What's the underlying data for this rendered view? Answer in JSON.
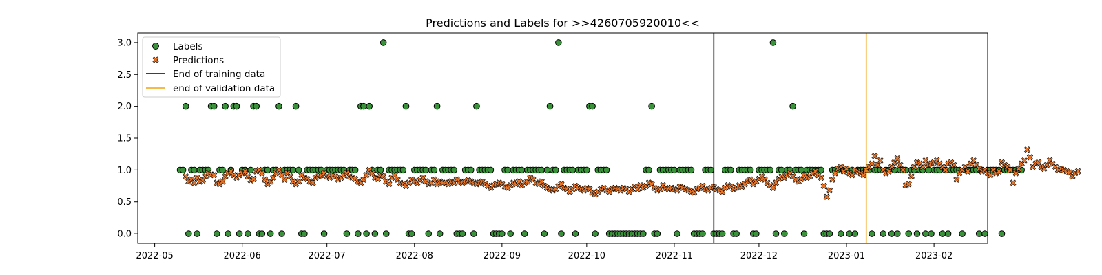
{
  "chart_data": {
    "type": "scatter",
    "title": "Predictions and Labels for >>4260705920010<<",
    "xlabel": "",
    "ylabel": "",
    "x_start": "2022-04-25",
    "x_end": "2023-02-20",
    "ylim": [
      -0.15,
      3.15
    ],
    "x_ticks": [
      "2022-05-01",
      "2022-06-01",
      "2022-07-01",
      "2022-08-01",
      "2022-09-01",
      "2022-10-01",
      "2022-11-01",
      "2022-12-01",
      "2023-01-01",
      "2023-02-01"
    ],
    "x_tick_labels": [
      "2022-05",
      "2022-06",
      "2022-07",
      "2022-08",
      "2022-09",
      "2022-10",
      "2022-11",
      "2022-12",
      "2023-01",
      "2023-02"
    ],
    "y_ticks": [
      0.0,
      0.5,
      1.0,
      1.5,
      2.0,
      2.5,
      3.0
    ],
    "y_tick_labels": [
      "0.0",
      "0.5",
      "1.0",
      "1.5",
      "2.0",
      "2.5",
      "3.0"
    ],
    "grid": false,
    "legend_position": "top-left",
    "legend": {
      "labels": "Labels",
      "predictions": "Predictions",
      "train_end": "End of training data",
      "val_end": "end of validation data"
    },
    "colors": {
      "labels": "#3a923a",
      "predictions": "#e8762a",
      "train_end": "#000000",
      "val_end": "#f2a30f"
    },
    "vlines": {
      "train_end": "2022-11-15",
      "val_end": "2023-01-08"
    },
    "labels_start_date": "2022-05-10",
    "labels_values": [
      1,
      1,
      2,
      0,
      1,
      1,
      0,
      1,
      1,
      1,
      1,
      2,
      2,
      0,
      1,
      1,
      2,
      0,
      1,
      2,
      2,
      0,
      1,
      1,
      0,
      1,
      2,
      2,
      0,
      0,
      1,
      1,
      0,
      1,
      1,
      2,
      0,
      1,
      1,
      1,
      1,
      2,
      1,
      0,
      0,
      1,
      1,
      1,
      1,
      1,
      1,
      0,
      1,
      1,
      1,
      1,
      1,
      1,
      1,
      0,
      1,
      1,
      1,
      0,
      2,
      2,
      0,
      2,
      1,
      0,
      1,
      1,
      3,
      0,
      1,
      1,
      1,
      1,
      1,
      1,
      2,
      0,
      0,
      1,
      1,
      1,
      1,
      1,
      0,
      1,
      1,
      2,
      0,
      1,
      1,
      1,
      1,
      1,
      0,
      0,
      0,
      1,
      1,
      1,
      0,
      2,
      1,
      1,
      1,
      1,
      1,
      0,
      0,
      0,
      0,
      1,
      1,
      0,
      1,
      1,
      1,
      1,
      0,
      1,
      1,
      1,
      1,
      1,
      1,
      0,
      1,
      2,
      1,
      1,
      3,
      0,
      1,
      1,
      1,
      1,
      0,
      1,
      1,
      1,
      1,
      2,
      2,
      0,
      1,
      1,
      1,
      1,
      0,
      0,
      0,
      0,
      0,
      0,
      0,
      0,
      0,
      0,
      0,
      0,
      0,
      1,
      1,
      2,
      0,
      0,
      1,
      1,
      1,
      1,
      1,
      1,
      0,
      1,
      1,
      1,
      1,
      1,
      0,
      0,
      0,
      0,
      1,
      1,
      1,
      0,
      0,
      0,
      0,
      1,
      1,
      1,
      0,
      0,
      1,
      1,
      1,
      1,
      1,
      0,
      0,
      1,
      1,
      1,
      1,
      1,
      3,
      0,
      1,
      1,
      0,
      1,
      1,
      2,
      1,
      1,
      1,
      0,
      1,
      1,
      1,
      1,
      1,
      1,
      0,
      0,
      0,
      1,
      1,
      1,
      0,
      1,
      1,
      0,
      1,
      0,
      1,
      1,
      1,
      1,
      1,
      0,
      1,
      1,
      1,
      0,
      1,
      1,
      0,
      1,
      0,
      1,
      1,
      1,
      0,
      1,
      1,
      0,
      1,
      1,
      0,
      1,
      0,
      1,
      1,
      1,
      0,
      1,
      0,
      1,
      1,
      1,
      1,
      0,
      1,
      1,
      1,
      1,
      1,
      0,
      1,
      0,
      1,
      1,
      1,
      1,
      1,
      0,
      1,
      1,
      1,
      1,
      1,
      1,
      1
    ],
    "predictions_start_date": "2022-05-12",
    "predictions_values": [
      0.9,
      0.82,
      0.85,
      0.8,
      0.88,
      0.82,
      0.84,
      0.9,
      0.95,
      0.93,
      0.92,
      0.8,
      0.78,
      0.82,
      0.9,
      0.95,
      0.98,
      0.92,
      0.88,
      0.92,
      0.95,
      0.98,
      0.9,
      0.84,
      0.86,
      0.98,
      1.0,
      0.95,
      0.85,
      0.78,
      0.82,
      0.88,
      0.95,
      1.0,
      0.92,
      0.85,
      0.95,
      0.9,
      0.82,
      0.78,
      0.82,
      0.92,
      0.88,
      0.86,
      0.82,
      0.8,
      0.88,
      0.9,
      0.92,
      0.95,
      0.9,
      0.88,
      0.92,
      0.9,
      0.85,
      0.88,
      0.92,
      0.95,
      0.9,
      0.88,
      0.86,
      0.82,
      0.8,
      0.85,
      0.92,
      1.0,
      0.95,
      0.88,
      0.86,
      0.92,
      0.9,
      0.82,
      0.78,
      0.88,
      0.92,
      0.85,
      0.8,
      0.78,
      0.75,
      0.8,
      0.85,
      0.82,
      0.8,
      0.84,
      0.88,
      0.82,
      0.78,
      0.8,
      0.85,
      0.78,
      0.82,
      0.8,
      0.8,
      0.78,
      0.82,
      0.8,
      0.85,
      0.82,
      0.8,
      0.82,
      0.84,
      0.82,
      0.8,
      0.78,
      0.8,
      0.82,
      0.78,
      0.75,
      0.72,
      0.76,
      0.78,
      0.8,
      0.78,
      0.74,
      0.72,
      0.76,
      0.8,
      0.78,
      0.82,
      0.76,
      0.8,
      0.82,
      0.88,
      0.85,
      0.8,
      0.78,
      0.82,
      0.75,
      0.72,
      0.7,
      0.68,
      0.7,
      0.75,
      0.78,
      0.72,
      0.7,
      0.66,
      0.7,
      0.75,
      0.72,
      0.7,
      0.68,
      0.72,
      0.7,
      0.65,
      0.62,
      0.66,
      0.7,
      0.72,
      0.68,
      0.66,
      0.7,
      0.72,
      0.7,
      0.68,
      0.72,
      0.7,
      0.66,
      0.7,
      0.74,
      0.7,
      0.76,
      0.72,
      0.75,
      0.8,
      0.78,
      0.72,
      0.68,
      0.7,
      0.76,
      0.72,
      0.7,
      0.72,
      0.7,
      0.68,
      0.74,
      0.72,
      0.7,
      0.68,
      0.66,
      0.65,
      0.7,
      0.72,
      0.75,
      0.7,
      0.68,
      0.72,
      0.74,
      0.7,
      0.68,
      0.66,
      0.72,
      0.76,
      0.74,
      0.7,
      0.72,
      0.76,
      0.74,
      0.78,
      0.82,
      0.85,
      0.78,
      0.82,
      0.86,
      0.9,
      0.85,
      0.8,
      0.76,
      0.72,
      0.8,
      0.86,
      0.9,
      0.88,
      0.92,
      0.95,
      0.9,
      0.85,
      0.82,
      0.86,
      0.92,
      0.88,
      0.9,
      0.95,
      0.98,
      0.92,
      0.88,
      0.75,
      0.58,
      0.68,
      0.85,
      0.95,
      1.02,
      1.05,
      0.98,
      1.02,
      0.95,
      0.92,
      1.0,
      0.98,
      0.95,
      0.92,
      1.0,
      1.05,
      1.1,
      1.22,
      1.08,
      1.15,
      1.0,
      0.95,
      0.98,
      1.05,
      1.12,
      1.18,
      1.08,
      1.0,
      0.76,
      0.78,
      0.9,
      1.05,
      1.12,
      1.1,
      1.05,
      1.15,
      1.08,
      1.1,
      1.12,
      1.15,
      1.1,
      1.05,
      1.0,
      1.1,
      1.12,
      1.08,
      0.85,
      0.95,
      1.0,
      1.05,
      0.98,
      1.1,
      1.15,
      1.08,
      1.02,
      0.98,
      1.0,
      0.95,
      0.92,
      1.0,
      0.95,
      0.98,
      1.12,
      1.08,
      1.05,
      1.0,
      0.8,
      0.95,
      1.02,
      1.1,
      1.15,
      1.32,
      1.2,
      1.05,
      1.1,
      1.12,
      1.05,
      1.02,
      1.08,
      1.15,
      1.1,
      1.05,
      1.0,
      1.02,
      1.0,
      0.98,
      0.96,
      0.9,
      0.95,
      0.98
    ]
  }
}
